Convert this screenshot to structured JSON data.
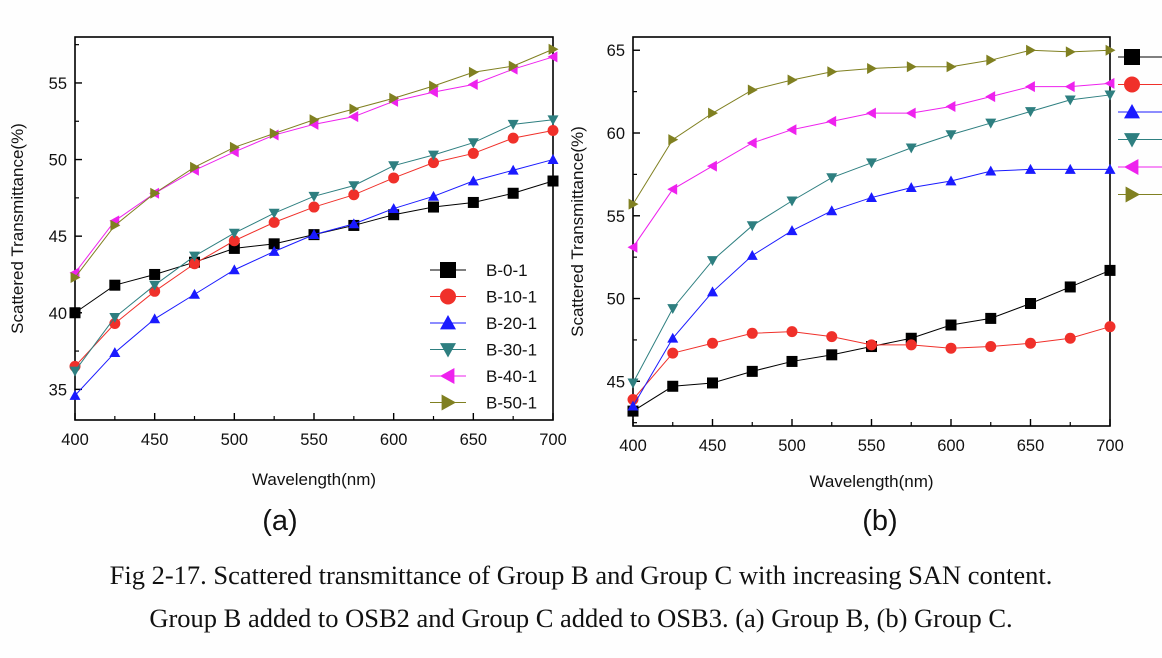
{
  "caption": {
    "line1": "Fig 2-17. Scattered transmittance of Group B and Group C with increasing SAN content.",
    "line2": "Group B added to OSB2 and Group C added to OSB3. (a) Group B, (b) Group C."
  },
  "chart_data": [
    {
      "type": "line",
      "panel_label": "(a)",
      "xlabel": "Wavelength(nm)",
      "ylabel": "Scattered Transmittance(%)",
      "xlim": [
        400,
        700
      ],
      "ylim": [
        33,
        58
      ],
      "xticks": [
        400,
        450,
        500,
        550,
        600,
        650,
        700
      ],
      "yticks": [
        35,
        40,
        45,
        50,
        55
      ],
      "legend_position": "bottom-right",
      "grid": false,
      "x": [
        400,
        425,
        450,
        475,
        500,
        525,
        550,
        575,
        600,
        625,
        650,
        675,
        700
      ],
      "series": [
        {
          "name": "B-0-1",
          "marker": "square",
          "color": "#000000",
          "values": [
            40.0,
            41.8,
            42.5,
            43.3,
            44.2,
            44.5,
            45.1,
            45.7,
            46.4,
            46.9,
            47.2,
            47.8,
            48.6
          ]
        },
        {
          "name": "B-10-1",
          "marker": "circle",
          "color": "#f0302a",
          "values": [
            36.5,
            39.3,
            41.4,
            43.2,
            44.7,
            45.9,
            46.9,
            47.7,
            48.8,
            49.8,
            50.4,
            51.4,
            51.9
          ]
        },
        {
          "name": "B-20-1",
          "marker": "triangle-up",
          "color": "#1a1aff",
          "values": [
            34.6,
            37.4,
            39.6,
            41.2,
            42.8,
            44.0,
            45.1,
            45.8,
            46.8,
            47.6,
            48.6,
            49.3,
            50.0
          ]
        },
        {
          "name": "B-30-1",
          "marker": "triangle-down",
          "color": "#2e7f80",
          "values": [
            36.2,
            39.7,
            41.8,
            43.7,
            45.2,
            46.5,
            47.6,
            48.3,
            49.6,
            50.3,
            51.1,
            52.3,
            52.6
          ]
        },
        {
          "name": "B-40-1",
          "marker": "triangle-left",
          "color": "#ee22ee",
          "values": [
            42.6,
            46.0,
            47.8,
            49.3,
            50.5,
            51.6,
            52.3,
            52.8,
            53.8,
            54.4,
            54.9,
            55.9,
            56.7
          ]
        },
        {
          "name": "B-50-1",
          "marker": "triangle-right",
          "color": "#808021",
          "values": [
            42.3,
            45.7,
            47.8,
            49.5,
            50.8,
            51.7,
            52.6,
            53.3,
            54.0,
            54.8,
            55.7,
            56.1,
            57.2
          ]
        }
      ]
    },
    {
      "type": "line",
      "panel_label": "(b)",
      "xlabel": "Wavelength(nm)",
      "ylabel": "Scattered Transmittance(%)",
      "xlim": [
        400,
        700
      ],
      "ylim": [
        42.3,
        65.8
      ],
      "xticks": [
        400,
        450,
        500,
        550,
        600,
        650,
        700
      ],
      "yticks": [
        45,
        50,
        55,
        60,
        65
      ],
      "legend_position": "top-right, outside",
      "grid": false,
      "x": [
        400,
        425,
        450,
        475,
        500,
        525,
        550,
        575,
        600,
        625,
        650,
        675,
        700
      ],
      "series": [
        {
          "marker": "square",
          "color": "#000000",
          "values": [
            43.2,
            44.7,
            44.9,
            45.6,
            46.2,
            46.6,
            47.1,
            47.6,
            48.4,
            48.8,
            49.7,
            50.7,
            51.7
          ]
        },
        {
          "marker": "circle",
          "color": "#f0302a",
          "values": [
            43.9,
            46.7,
            47.3,
            47.9,
            48.0,
            47.7,
            47.2,
            47.2,
            47.0,
            47.1,
            47.3,
            47.6,
            48.3
          ]
        },
        {
          "marker": "triangle-up",
          "color": "#1a1aff",
          "values": [
            43.5,
            47.6,
            50.4,
            52.6,
            54.1,
            55.3,
            56.1,
            56.7,
            57.1,
            57.7,
            57.8,
            57.8,
            57.8
          ]
        },
        {
          "marker": "triangle-down",
          "color": "#2e7f80",
          "values": [
            44.9,
            49.4,
            52.3,
            54.4,
            55.9,
            57.3,
            58.2,
            59.1,
            59.9,
            60.6,
            61.3,
            62.0,
            62.3
          ]
        },
        {
          "marker": "triangle-left",
          "color": "#ee22ee",
          "values": [
            53.1,
            56.6,
            58.0,
            59.4,
            60.2,
            60.7,
            61.2,
            61.2,
            61.6,
            62.2,
            62.8,
            62.8,
            63.0
          ]
        },
        {
          "marker": "triangle-right",
          "color": "#808021",
          "values": [
            55.7,
            59.6,
            61.2,
            62.6,
            63.2,
            63.7,
            63.9,
            64.0,
            64.0,
            64.4,
            65.0,
            64.9,
            65.0
          ]
        }
      ]
    }
  ]
}
